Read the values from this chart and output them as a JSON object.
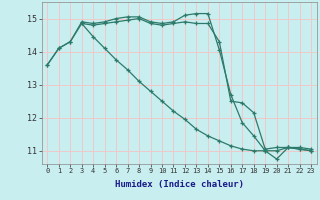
{
  "xlabel": "Humidex (Indice chaleur)",
  "bg_color": "#c8eef0",
  "grid_color": "#f0c8c8",
  "line_color": "#2d7a6a",
  "xlim": [
    -0.5,
    23.5
  ],
  "ylim": [
    10.6,
    15.5
  ],
  "yticks": [
    11,
    12,
    13,
    14,
    15
  ],
  "xticks": [
    0,
    1,
    2,
    3,
    4,
    5,
    6,
    7,
    8,
    9,
    10,
    11,
    12,
    13,
    14,
    15,
    16,
    17,
    18,
    19,
    20,
    21,
    22,
    23
  ],
  "line1_x": [
    0,
    1,
    2,
    3,
    4,
    5,
    6,
    7,
    8,
    9,
    10,
    11,
    12,
    13,
    14,
    15,
    16,
    17,
    18,
    19,
    20,
    21,
    22,
    23
  ],
  "line1_y": [
    13.6,
    14.1,
    14.3,
    14.9,
    14.85,
    14.9,
    15.0,
    15.05,
    15.05,
    14.9,
    14.85,
    14.9,
    15.1,
    15.15,
    15.15,
    14.05,
    12.7,
    11.85,
    11.45,
    11.0,
    10.75,
    11.1,
    11.1,
    11.05
  ],
  "line2_x": [
    0,
    1,
    2,
    3,
    4,
    5,
    6,
    7,
    8,
    9,
    10,
    11,
    12,
    13,
    14,
    15,
    16,
    17,
    18,
    19,
    20,
    21,
    22,
    23
  ],
  "line2_y": [
    13.6,
    14.1,
    14.3,
    14.85,
    14.45,
    14.1,
    13.75,
    13.45,
    13.1,
    12.8,
    12.5,
    12.2,
    11.95,
    11.65,
    11.45,
    11.3,
    11.15,
    11.05,
    11.0,
    11.0,
    11.0,
    11.1,
    11.05,
    11.0
  ],
  "line3_x": [
    3,
    4,
    5,
    6,
    7,
    8,
    9,
    10,
    11,
    12,
    13,
    14,
    15,
    16,
    17,
    18,
    19,
    20,
    21,
    22,
    23
  ],
  "line3_y": [
    14.85,
    14.8,
    14.85,
    14.9,
    14.95,
    15.0,
    14.85,
    14.8,
    14.85,
    14.9,
    14.85,
    14.85,
    14.3,
    12.5,
    12.45,
    12.15,
    11.05,
    11.1,
    11.1,
    11.05,
    11.0
  ]
}
